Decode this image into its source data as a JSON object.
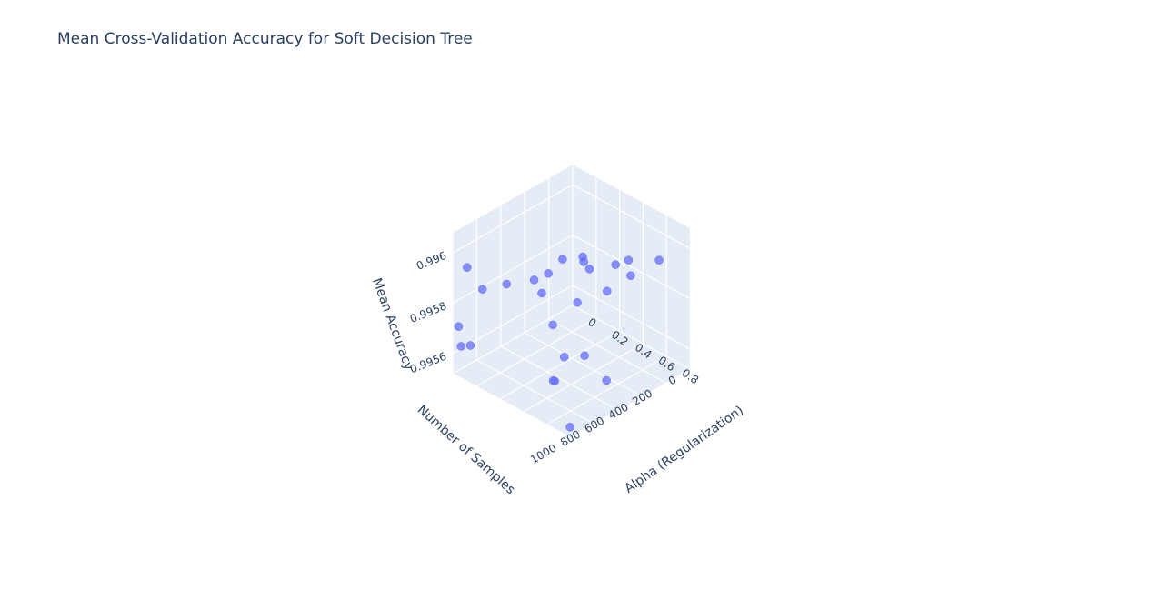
{
  "chart_data": {
    "type": "scatter3d",
    "title": "Mean Cross-Validation Accuracy for Soft Decision Tree",
    "axes": {
      "x": {
        "label": "Number of Samples",
        "ticks": [
          "0",
          "200",
          "400",
          "600",
          "800",
          "1000"
        ],
        "range": [
          0,
          1000
        ]
      },
      "y": {
        "label": "Alpha (Regularization)",
        "ticks": [
          "0",
          "0.2",
          "0.4",
          "0.6",
          "0.8"
        ],
        "range": [
          0,
          1
        ]
      },
      "z": {
        "label": "Mean Accuracy",
        "ticks": [
          "0.9956",
          "0.9958",
          "0.996"
        ],
        "range": [
          0.99552,
          0.99608
        ]
      }
    },
    "marker_color": "#636efa",
    "points": [
      {
        "n_samples": 120,
        "alpha": 0.86,
        "accuracy": 0.99595
      },
      {
        "n_samples": 220,
        "alpha": 0.72,
        "accuracy": 0.99588
      },
      {
        "n_samples": 150,
        "alpha": 0.63,
        "accuracy": 0.9959
      },
      {
        "n_samples": 180,
        "alpha": 0.55,
        "accuracy": 0.99587
      },
      {
        "n_samples": 300,
        "alpha": 0.45,
        "accuracy": 0.99586
      },
      {
        "n_samples": 250,
        "alpha": 0.35,
        "accuracy": 0.99585
      },
      {
        "n_samples": 160,
        "alpha": 0.25,
        "accuracy": 0.99582
      },
      {
        "n_samples": 280,
        "alpha": 0.2,
        "accuracy": 0.99583
      },
      {
        "n_samples": 350,
        "alpha": 0.15,
        "accuracy": 0.99578
      },
      {
        "n_samples": 400,
        "alpha": 0.08,
        "accuracy": 0.99575
      },
      {
        "n_samples": 900,
        "alpha": 0.02,
        "accuracy": 0.99592
      },
      {
        "n_samples": 850,
        "alpha": 0.1,
        "accuracy": 0.99584
      },
      {
        "n_samples": 600,
        "alpha": 0.05,
        "accuracy": 0.99578
      },
      {
        "n_samples": 950,
        "alpha": 0.9,
        "accuracy": 0.9958
      },
      {
        "n_samples": 800,
        "alpha": 0.92,
        "accuracy": 0.99577
      },
      {
        "n_samples": 980,
        "alpha": 0.85,
        "accuracy": 0.9957
      },
      {
        "n_samples": 850,
        "alpha": 0.7,
        "accuracy": 0.99585
      },
      {
        "n_samples": 1000,
        "alpha": 0.05,
        "accuracy": 0.99572
      },
      {
        "n_samples": 1000,
        "alpha": 0.15,
        "accuracy": 0.99567
      },
      {
        "n_samples": 950,
        "alpha": 0.02,
        "accuracy": 0.99562
      },
      {
        "n_samples": 980,
        "alpha": 0.98,
        "accuracy": 0.99555
      },
      {
        "n_samples": 700,
        "alpha": 0.55,
        "accuracy": 0.99555
      },
      {
        "n_samples": 500,
        "alpha": 0.8,
        "accuracy": 0.99556
      },
      {
        "n_samples": 300,
        "alpha": 0.6,
        "accuracy": 0.99581
      },
      {
        "n_samples": 600,
        "alpha": 0.35,
        "accuracy": 0.99582
      },
      {
        "n_samples": 450,
        "alpha": 0.5,
        "accuracy": 0.99578
      }
    ]
  }
}
